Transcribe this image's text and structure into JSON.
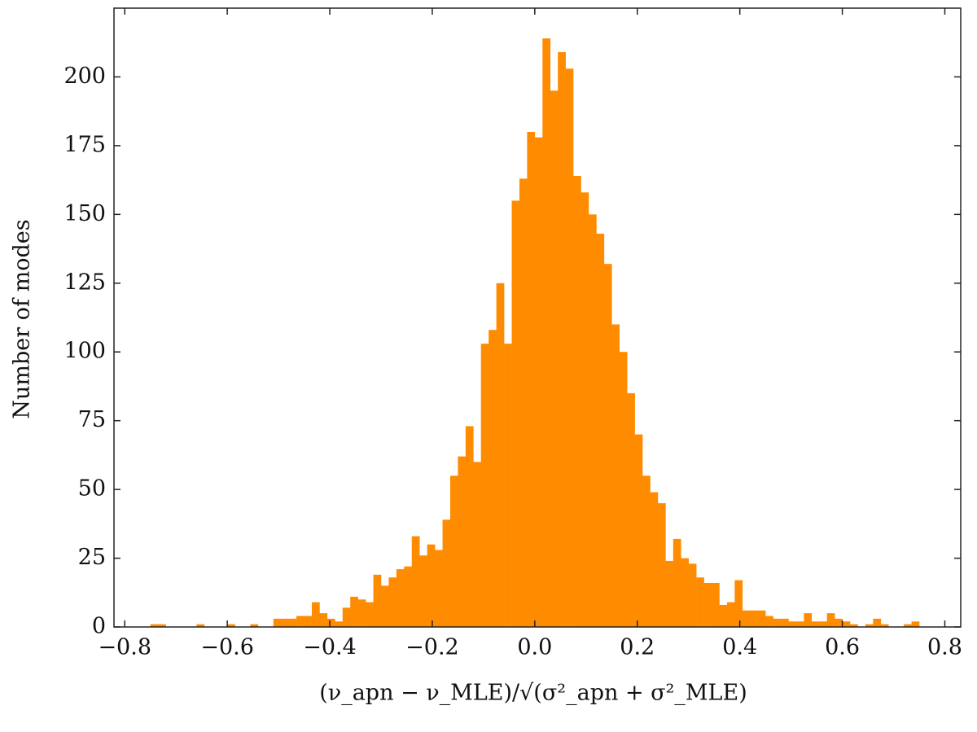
{
  "chart_data": {
    "type": "histogram",
    "xlabel": "(ν_apn − ν_MLE)/√(σ²_apn + σ²_MLE)",
    "ylabel": "Number of modes",
    "color": "#ff8c00",
    "bins": [
      -0.75,
      -0.735,
      -0.72,
      -0.705,
      -0.69,
      -0.675,
      -0.66,
      -0.645,
      -0.63,
      -0.615,
      -0.6,
      -0.585,
      -0.57,
      -0.555,
      -0.54,
      -0.525,
      -0.51,
      -0.495,
      -0.48,
      -0.465,
      -0.45,
      -0.435,
      -0.42,
      -0.405,
      -0.39,
      -0.375,
      -0.36,
      -0.345,
      -0.33,
      -0.315,
      -0.3,
      -0.285,
      -0.27,
      -0.255,
      -0.24,
      -0.225,
      -0.21,
      -0.195,
      -0.18,
      -0.165,
      -0.15,
      -0.135,
      -0.12,
      -0.105,
      -0.09,
      -0.075,
      -0.06,
      -0.045,
      -0.03,
      -0.015,
      0,
      0.015,
      0.03,
      0.045,
      0.06,
      0.075,
      0.09,
      0.105,
      0.12,
      0.135,
      0.15,
      0.165,
      0.18,
      0.195,
      0.21,
      0.225,
      0.24,
      0.255,
      0.27,
      0.285,
      0.3,
      0.315,
      0.33,
      0.345,
      0.36,
      0.375,
      0.39,
      0.405,
      0.42,
      0.435,
      0.45,
      0.465,
      0.48,
      0.495,
      0.51,
      0.525,
      0.54,
      0.555,
      0.57,
      0.585,
      0.6,
      0.615,
      0.63,
      0.645,
      0.66,
      0.675,
      0.69,
      0.705,
      0.72,
      0.735,
      0.75
    ],
    "values": [
      1,
      1,
      0,
      0,
      0,
      0,
      1,
      0,
      0,
      0,
      1,
      0,
      0,
      1,
      0,
      0,
      3,
      3,
      3,
      4,
      4,
      9,
      5,
      3,
      2,
      7,
      11,
      10,
      9,
      19,
      15,
      18,
      21,
      22,
      33,
      26,
      30,
      28,
      39,
      55,
      62,
      73,
      60,
      103,
      108,
      125,
      103,
      155,
      163,
      180,
      178,
      214,
      195,
      209,
      203,
      164,
      158,
      150,
      143,
      132,
      110,
      100,
      85,
      70,
      55,
      49,
      45,
      24,
      32,
      25,
      23,
      18,
      16,
      16,
      8,
      9,
      17,
      6,
      6,
      6,
      4,
      3,
      3,
      2,
      2,
      5,
      2,
      2,
      5,
      3,
      2,
      1,
      0,
      1,
      3,
      1,
      0,
      0,
      1,
      2
    ],
    "xlim": [
      -0.821,
      0.831
    ],
    "ylim": [
      0,
      225
    ],
    "xticks": [
      {
        "value": -0.8,
        "label": "−0.8"
      },
      {
        "value": -0.6,
        "label": "−0.6"
      },
      {
        "value": -0.4,
        "label": "−0.4"
      },
      {
        "value": -0.2,
        "label": "−0.2"
      },
      {
        "value": 0,
        "label": "0.0"
      },
      0.2,
      0.4,
      0.6,
      0.8
    ],
    "yticks": [
      0,
      25,
      50,
      75,
      100,
      125,
      150,
      175,
      200
    ]
  }
}
